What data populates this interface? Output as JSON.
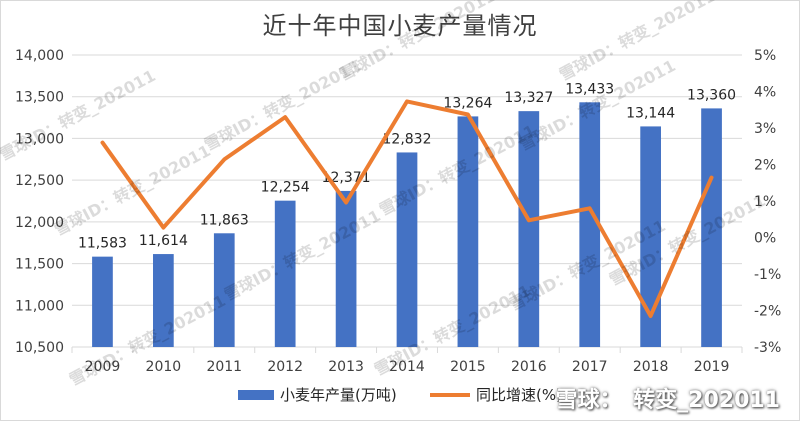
{
  "title": "近十年中国小麦产量情况",
  "chart_data": {
    "type": "bar",
    "title": "近十年中国小麦产量情况",
    "categories": [
      "2009",
      "2010",
      "2011",
      "2012",
      "2013",
      "2014",
      "2015",
      "2016",
      "2017",
      "2018",
      "2019"
    ],
    "series": [
      {
        "name": "小麦年产量(万吨)",
        "type": "bar",
        "axis": "left",
        "color": "#4472C4",
        "values": [
          11583,
          11614,
          11863,
          12254,
          12371,
          12832,
          13264,
          13327,
          13433,
          13144,
          13360
        ],
        "labels": [
          "11,583",
          "11,614",
          "11,863",
          "12,254",
          "12,371",
          "12,832",
          "13,264",
          "13,327",
          "13,433",
          "13,144",
          "13,360"
        ]
      },
      {
        "name": "同比增速(%)",
        "type": "line",
        "axis": "right",
        "color": "#ED7D31",
        "values": [
          2.6,
          0.27,
          2.14,
          3.3,
          0.96,
          3.73,
          3.37,
          0.47,
          0.8,
          -2.15,
          1.64
        ]
      }
    ],
    "y_left": {
      "ylim": [
        10500,
        14000
      ],
      "step": 500,
      "ticks": [
        "10,500",
        "11,000",
        "11,500",
        "12,000",
        "12,500",
        "13,000",
        "13,500",
        "14,000"
      ]
    },
    "y_right": {
      "ylim": [
        -3,
        5
      ],
      "step": 1,
      "ticks": [
        "-3%",
        "-2%",
        "-1%",
        "0%",
        "1%",
        "2%",
        "3%",
        "4%",
        "5%"
      ]
    },
    "grid": true,
    "legend": "bottom"
  },
  "watermark": {
    "text": "雪球ID：转变_202011",
    "footer": [
      "雪球：",
      "转变_202011"
    ]
  }
}
